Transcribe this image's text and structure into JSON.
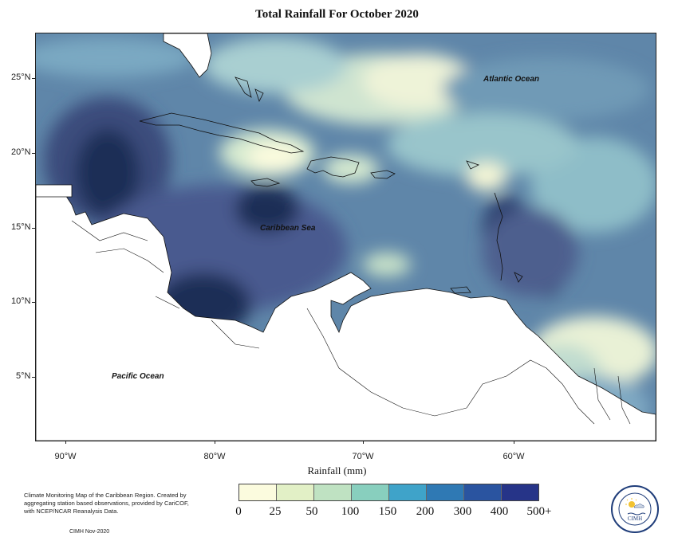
{
  "title": "Total Rainfall For October 2020",
  "latitude_labels": [
    "25°N",
    "20°N",
    "15°N",
    "10°N",
    "5°N"
  ],
  "longitude_labels": [
    "90°W",
    "80°W",
    "70°W",
    "60°W"
  ],
  "region_labels": {
    "atlantic": "Atlantic Ocean",
    "caribbean": "Caribbean Sea",
    "pacific": "Pacific Ocean"
  },
  "colorbar": {
    "title": "Rainfall (mm)",
    "tick_labels": [
      "0",
      "25",
      "50",
      "100",
      "150",
      "200",
      "300",
      "400",
      "500+"
    ],
    "colors": [
      "#fbfbde",
      "#e2f0c6",
      "#bfe2c2",
      "#88cfbe",
      "#3fa3c9",
      "#2f79b4",
      "#2a54a0",
      "#263488",
      "#0d1b56"
    ]
  },
  "footnote": "Climate Monitoring Map of the Caribbean Region. Created by aggregating station based observations, provided by CariCOF, with NCEP/NCAR Reanalysis Data.",
  "credit": "CIMH Nov-2020",
  "logo": {
    "text": "CIMH",
    "icon": "sun-cloud-icon"
  }
}
